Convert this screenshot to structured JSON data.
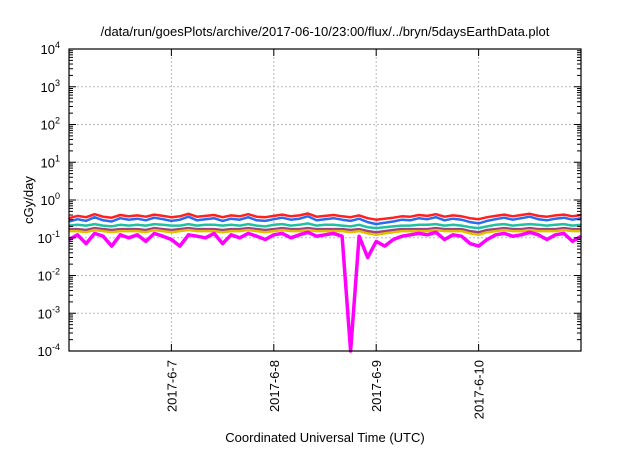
{
  "chart_data": {
    "type": "line",
    "title": "/data/run/goesPlots/archive/2017-06-10/23:00/flux/../bryn/5daysEarthData.plot",
    "xlabel": "Coordinated Universal Time (UTC)",
    "ylabel": "cGy/day",
    "yscale": "log",
    "ylim": [
      0.0001,
      10000
    ],
    "xlim_hours": [
      0,
      120
    ],
    "x_origin": "2017-06-06 00:00 UTC",
    "step_hours": 2,
    "grid": true,
    "yticks": [
      {
        "base": "10",
        "exp": "-4",
        "value": 0.0001
      },
      {
        "base": "10",
        "exp": "-3",
        "value": 0.001
      },
      {
        "base": "10",
        "exp": "-2",
        "value": 0.01
      },
      {
        "base": "10",
        "exp": "-1",
        "value": 0.1
      },
      {
        "base": "10",
        "exp": "0",
        "value": 1
      },
      {
        "base": "10",
        "exp": "1",
        "value": 10
      },
      {
        "base": "10",
        "exp": "2",
        "value": 100
      },
      {
        "base": "10",
        "exp": "3",
        "value": 1000
      },
      {
        "base": "10",
        "exp": "4",
        "value": 10000
      }
    ],
    "xticks": [
      {
        "label": "2017-6-7",
        "hours": 24
      },
      {
        "label": "2017-6-8",
        "hours": 48
      },
      {
        "label": "2017-6-9",
        "hours": 72
      },
      {
        "label": "2017-6-10",
        "hours": 96
      }
    ],
    "series": [
      {
        "name": "red",
        "color": "#ff2020",
        "values": [
          0.33,
          0.38,
          0.35,
          0.42,
          0.36,
          0.34,
          0.4,
          0.37,
          0.39,
          0.36,
          0.41,
          0.38,
          0.35,
          0.37,
          0.43,
          0.36,
          0.38,
          0.4,
          0.35,
          0.39,
          0.37,
          0.42,
          0.36,
          0.35,
          0.38,
          0.41,
          0.37,
          0.39,
          0.44,
          0.36,
          0.38,
          0.4,
          0.37,
          0.35,
          0.39,
          0.33,
          0.3,
          0.32,
          0.34,
          0.37,
          0.36,
          0.4,
          0.38,
          0.42,
          0.36,
          0.39,
          0.37,
          0.33,
          0.31,
          0.35,
          0.38,
          0.41,
          0.37,
          0.4,
          0.43,
          0.38,
          0.36,
          0.39,
          0.41,
          0.37,
          0.4
        ]
      },
      {
        "name": "blue",
        "color": "#2a6cf0",
        "values": [
          0.27,
          0.31,
          0.28,
          0.35,
          0.29,
          0.27,
          0.33,
          0.3,
          0.32,
          0.29,
          0.34,
          0.31,
          0.28,
          0.3,
          0.36,
          0.29,
          0.31,
          0.33,
          0.28,
          0.32,
          0.3,
          0.35,
          0.29,
          0.28,
          0.31,
          0.34,
          0.3,
          0.32,
          0.37,
          0.29,
          0.31,
          0.33,
          0.3,
          0.28,
          0.32,
          0.26,
          0.23,
          0.25,
          0.27,
          0.3,
          0.29,
          0.33,
          0.31,
          0.35,
          0.29,
          0.32,
          0.3,
          0.26,
          0.24,
          0.28,
          0.31,
          0.34,
          0.3,
          0.33,
          0.36,
          0.31,
          0.29,
          0.32,
          0.34,
          0.3,
          0.33
        ]
      },
      {
        "name": "green",
        "color": "#20c0a0",
        "values": [
          0.21,
          0.22,
          0.21,
          0.23,
          0.21,
          0.2,
          0.22,
          0.21,
          0.22,
          0.21,
          0.23,
          0.22,
          0.21,
          0.21,
          0.23,
          0.21,
          0.22,
          0.22,
          0.21,
          0.22,
          0.21,
          0.23,
          0.21,
          0.2,
          0.22,
          0.23,
          0.21,
          0.22,
          0.24,
          0.21,
          0.22,
          0.22,
          0.21,
          0.2,
          0.22,
          0.19,
          0.18,
          0.19,
          0.2,
          0.21,
          0.21,
          0.22,
          0.22,
          0.23,
          0.21,
          0.22,
          0.21,
          0.19,
          0.18,
          0.2,
          0.22,
          0.23,
          0.21,
          0.22,
          0.23,
          0.22,
          0.21,
          0.22,
          0.23,
          0.21,
          0.22
        ]
      },
      {
        "name": "purple",
        "color": "#a04080",
        "values": [
          0.17,
          0.17,
          0.16,
          0.18,
          0.17,
          0.16,
          0.17,
          0.17,
          0.17,
          0.16,
          0.18,
          0.17,
          0.16,
          0.17,
          0.18,
          0.17,
          0.17,
          0.17,
          0.16,
          0.17,
          0.17,
          0.18,
          0.17,
          0.16,
          0.17,
          0.18,
          0.17,
          0.17,
          0.18,
          0.17,
          0.17,
          0.17,
          0.17,
          0.16,
          0.17,
          0.15,
          0.14,
          0.15,
          0.16,
          0.17,
          0.17,
          0.17,
          0.17,
          0.18,
          0.17,
          0.17,
          0.17,
          0.15,
          0.14,
          0.16,
          0.17,
          0.18,
          0.17,
          0.17,
          0.18,
          0.17,
          0.17,
          0.17,
          0.18,
          0.17,
          0.17
        ]
      },
      {
        "name": "yellow",
        "color": "#e0c000",
        "values": [
          0.15,
          0.15,
          0.14,
          0.16,
          0.15,
          0.14,
          0.15,
          0.15,
          0.15,
          0.14,
          0.16,
          0.15,
          0.14,
          0.15,
          0.16,
          0.15,
          0.15,
          0.15,
          0.14,
          0.15,
          0.15,
          0.16,
          0.15,
          0.14,
          0.15,
          0.16,
          0.15,
          0.15,
          0.16,
          0.15,
          0.15,
          0.15,
          0.15,
          0.14,
          0.15,
          0.13,
          0.12,
          0.13,
          0.14,
          0.15,
          0.15,
          0.15,
          0.15,
          0.16,
          0.15,
          0.15,
          0.15,
          0.13,
          0.12,
          0.14,
          0.15,
          0.16,
          0.15,
          0.15,
          0.16,
          0.15,
          0.15,
          0.15,
          0.16,
          0.15,
          0.15
        ]
      },
      {
        "name": "magenta",
        "color": "#ff00ff",
        "values": [
          0.09,
          0.12,
          0.07,
          0.13,
          0.11,
          0.06,
          0.12,
          0.1,
          0.12,
          0.08,
          0.13,
          0.11,
          0.09,
          0.06,
          0.12,
          0.11,
          0.1,
          0.13,
          0.07,
          0.12,
          0.1,
          0.13,
          0.11,
          0.09,
          0.12,
          0.13,
          0.1,
          0.12,
          0.14,
          0.11,
          0.12,
          0.13,
          0.11,
          0.0001,
          0.11,
          0.03,
          0.08,
          0.06,
          0.09,
          0.11,
          0.12,
          0.13,
          0.12,
          0.14,
          0.09,
          0.12,
          0.11,
          0.07,
          0.06,
          0.09,
          0.12,
          0.13,
          0.11,
          0.12,
          0.14,
          0.12,
          0.09,
          0.12,
          0.13,
          0.08,
          0.11
        ]
      }
    ]
  }
}
